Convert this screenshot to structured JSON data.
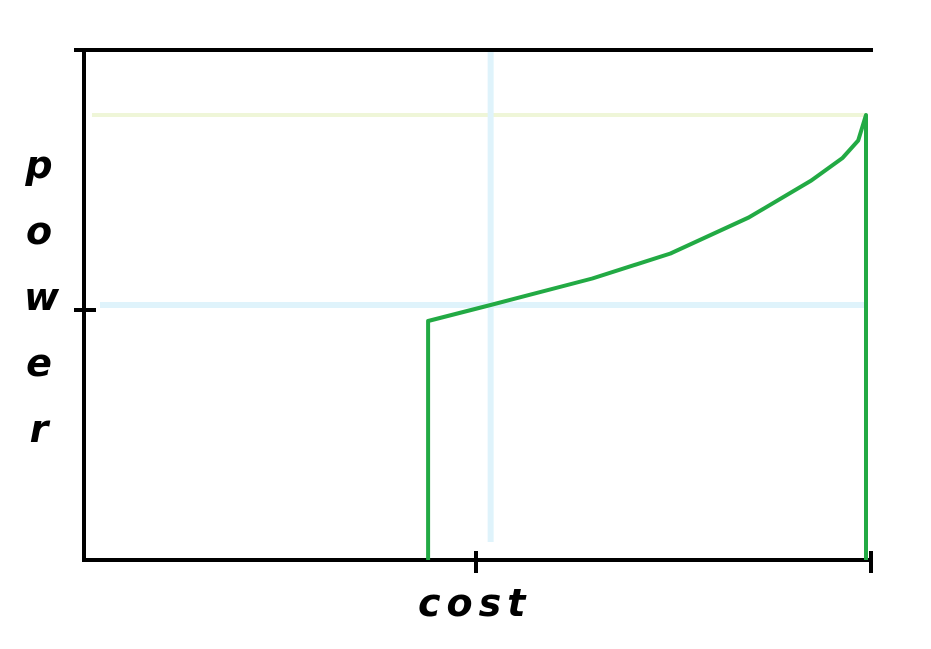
{
  "chart_data": {
    "type": "line",
    "title": "",
    "xlabel": "cost",
    "ylabel": "power",
    "xlim": [
      0,
      1
    ],
    "ylim": [
      0,
      1
    ],
    "grid": false,
    "x_tick_values": [
      0.5,
      1.0
    ],
    "y_tick_values": [
      0.5
    ],
    "reference_lines": {
      "vertical_x": 0.52,
      "horizontal_y": 0.51,
      "top_y": 0.89
    },
    "series": [
      {
        "values": [
          [
            0.44,
            0.0
          ],
          [
            0.44,
            0.478
          ],
          [
            0.52,
            0.51
          ],
          [
            0.65,
            0.563
          ],
          [
            0.75,
            0.613
          ],
          [
            0.85,
            0.685
          ],
          [
            0.93,
            0.759
          ],
          [
            0.97,
            0.804
          ],
          [
            0.99,
            0.839
          ],
          [
            1.0,
            0.89
          ],
          [
            1.0,
            0.0
          ]
        ]
      }
    ],
    "colors": {
      "axis": "#000000",
      "series": "#22aa44",
      "vertical_ref": "#dff3fb",
      "horizontal_ref": "#dff3fb",
      "top_ref": "#eff6d8"
    }
  }
}
